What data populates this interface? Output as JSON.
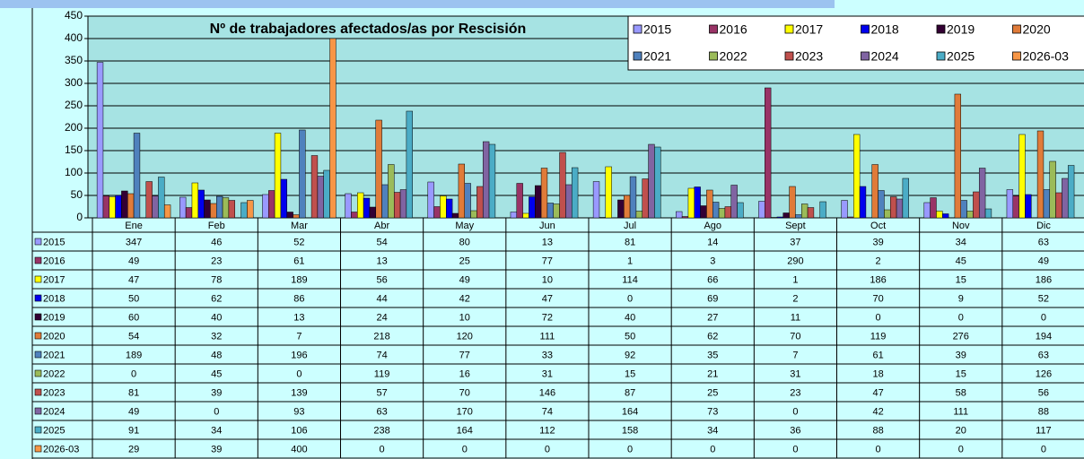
{
  "chart_data": {
    "type": "bar",
    "title": "Nº de trabajadores afectados/as por Rescisión",
    "categories": [
      "Ene",
      "Feb",
      "Mar",
      "Abr",
      "May",
      "Jun",
      "Jul",
      "Ago",
      "Sept",
      "Oct",
      "Nov",
      "Dic"
    ],
    "series": [
      {
        "name": "2015",
        "color": "#9999FF",
        "values": [
          347,
          46,
          52,
          54,
          80,
          13,
          81,
          14,
          37,
          39,
          34,
          63
        ]
      },
      {
        "name": "2016",
        "color": "#993366",
        "values": [
          49,
          23,
          61,
          13,
          25,
          77,
          1,
          3,
          290,
          2,
          45,
          49
        ]
      },
      {
        "name": "2017",
        "color": "#FFFF00",
        "values": [
          47,
          78,
          189,
          56,
          49,
          10,
          114,
          66,
          1,
          186,
          15,
          186
        ]
      },
      {
        "name": "2018",
        "color": "#0000EE",
        "values": [
          50,
          62,
          86,
          44,
          42,
          47,
          0,
          69,
          2,
          70,
          9,
          52
        ]
      },
      {
        "name": "2019",
        "color": "#330033",
        "values": [
          60,
          40,
          13,
          24,
          10,
          72,
          40,
          27,
          11,
          0,
          0,
          0
        ]
      },
      {
        "name": "2020",
        "color": "#E07B39",
        "values": [
          54,
          32,
          7,
          218,
          120,
          111,
          50,
          62,
          70,
          119,
          276,
          194
        ]
      },
      {
        "name": "2021",
        "color": "#4F81BD",
        "values": [
          189,
          48,
          196,
          74,
          77,
          33,
          92,
          35,
          7,
          61,
          39,
          63
        ]
      },
      {
        "name": "2022",
        "color": "#9BBB59",
        "values": [
          0,
          45,
          0,
          119,
          16,
          31,
          15,
          21,
          31,
          18,
          15,
          126
        ]
      },
      {
        "name": "2023",
        "color": "#C0504D",
        "values": [
          81,
          39,
          139,
          57,
          70,
          146,
          87,
          25,
          23,
          47,
          58,
          56
        ]
      },
      {
        "name": "2024",
        "color": "#8064A2",
        "values": [
          49,
          0,
          93,
          63,
          170,
          74,
          164,
          73,
          0,
          42,
          111,
          88
        ]
      },
      {
        "name": "2025",
        "color": "#4BACC6",
        "values": [
          91,
          34,
          106,
          238,
          164,
          112,
          158,
          34,
          36,
          88,
          20,
          117
        ]
      },
      {
        "name": "2026-03",
        "color": "#F79646",
        "values": [
          29,
          39,
          400,
          0,
          0,
          0,
          0,
          0,
          0,
          0,
          0,
          0
        ]
      }
    ],
    "ylim": [
      0,
      450
    ],
    "yticks": [
      0,
      50,
      100,
      150,
      200,
      250,
      300,
      350,
      400,
      450
    ],
    "grid": true,
    "legend": "top-right"
  }
}
